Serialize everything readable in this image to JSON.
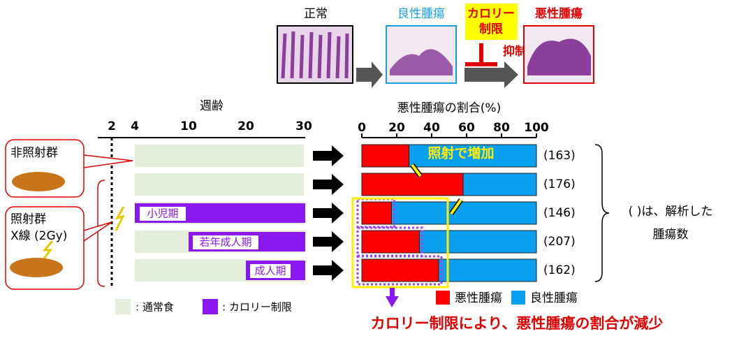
{
  "top": {
    "normal": "正常",
    "benign": "良性腫瘍",
    "cr": [
      "カロリー",
      "制限"
    ],
    "suppress": "抑制",
    "malignant": "悪性腫瘍"
  },
  "timeline": {
    "axis_label": "週齢",
    "ticks": [
      "2",
      "4",
      "10",
      "20",
      "30"
    ],
    "groups": [
      "非照射群",
      "照射群",
      "X線 (2Gy)"
    ],
    "periods": [
      "小児期",
      "若年成人期",
      "成人期"
    ],
    "legend": [
      ": 通常食",
      ": カロリー制限"
    ]
  },
  "chart_data": {
    "type": "stacked-bar-horizontal",
    "title": "悪性腫瘍の割合(%)",
    "xlim": [
      0,
      100
    ],
    "xticks": [
      0,
      20,
      40,
      60,
      80,
      100
    ],
    "series": [
      {
        "name": "悪性腫瘍",
        "color": "#ff0000",
        "values": [
          27,
          58,
          17,
          33,
          44
        ]
      },
      {
        "name": "良性腫瘍",
        "color": "#0aa0f0",
        "values": [
          73,
          42,
          83,
          67,
          56
        ]
      }
    ],
    "n_labels": [
      "(163)",
      "(176)",
      "(146)",
      "(207)",
      "(162)"
    ],
    "n_note": [
      "( )は、解析した",
      "腫瘍数"
    ],
    "annotation_increase": "照射で増加",
    "conclusion": "カロリー制限により、悪性腫瘍の割合が減少",
    "legend": "bottom-right"
  }
}
